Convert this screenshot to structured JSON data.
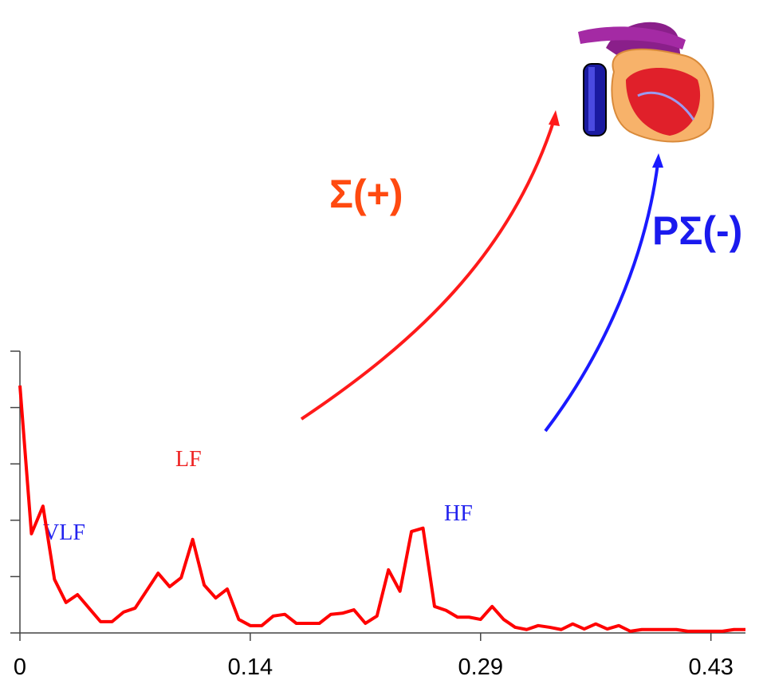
{
  "chart_data": {
    "type": "line",
    "x": [
      0,
      0.0072,
      0.0144,
      0.0216,
      0.0288,
      0.036,
      0.0432,
      0.0504,
      0.0576,
      0.0648,
      0.072,
      0.0792,
      0.0864,
      0.0936,
      0.1008,
      0.108,
      0.1152,
      0.1224,
      0.1296,
      0.1368,
      0.144,
      0.1512,
      0.1584,
      0.1656,
      0.1728,
      0.18,
      0.1872,
      0.1944,
      0.2016,
      0.2088,
      0.216,
      0.2232,
      0.2304,
      0.2376,
      0.2448,
      0.252,
      0.2592,
      0.2664,
      0.2736,
      0.2808,
      0.288,
      0.2952,
      0.3024,
      0.3096,
      0.3168,
      0.324,
      0.3312,
      0.3384,
      0.3456,
      0.3528,
      0.36,
      0.3672,
      0.3744,
      0.3816,
      0.3888,
      0.396,
      0.4032,
      0.4104,
      0.4176,
      0.4248,
      0.432,
      0.4392,
      0.4464,
      0.4536
    ],
    "values": [
      4.39,
      1.76,
      2.25,
      0.95,
      0.54,
      0.68,
      0.44,
      0.2,
      0.2,
      0.37,
      0.44,
      0.75,
      1.06,
      0.82,
      0.98,
      1.66,
      0.85,
      0.62,
      0.78,
      0.24,
      0.13,
      0.13,
      0.3,
      0.33,
      0.17,
      0.17,
      0.17,
      0.33,
      0.35,
      0.41,
      0.17,
      0.3,
      1.12,
      0.74,
      1.8,
      1.86,
      0.47,
      0.4,
      0.28,
      0.28,
      0.24,
      0.47,
      0.24,
      0.1,
      0.06,
      0.13,
      0.1,
      0.06,
      0.16,
      0.07,
      0.16,
      0.07,
      0.13,
      0.03,
      0.06,
      0.06,
      0.06,
      0.06,
      0.03,
      0.03,
      0.03,
      0.03,
      0.06,
      0.06
    ],
    "color": "#ff0000",
    "xlim": [
      0,
      0.4536
    ],
    "xticks": [
      0,
      {
        "value": 0.144,
        "label": "0.14"
      },
      {
        "value": 0.288,
        "label": "0.29"
      },
      {
        "value": 0.432,
        "label": "0.43"
      }
    ],
    "ylim": [
      0,
      5
    ],
    "yticks": [
      0,
      1,
      2,
      3,
      4,
      5
    ],
    "annotations": [
      "VLF",
      "LF",
      "HF",
      "Σ(+)",
      "PΣ(-)"
    ]
  }
}
